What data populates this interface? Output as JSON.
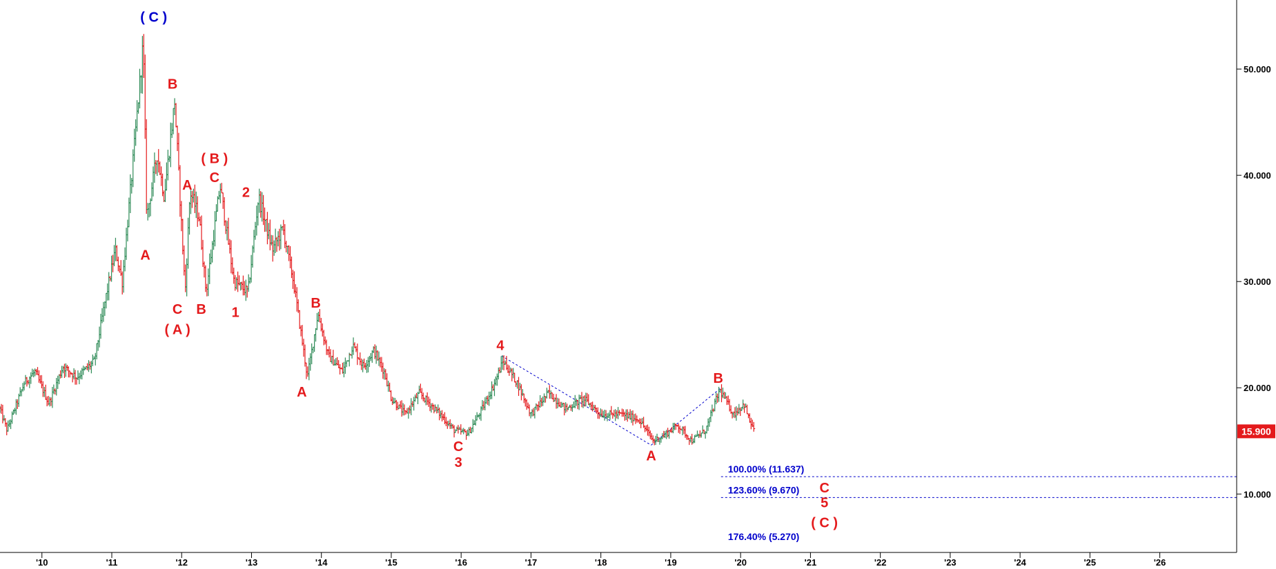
{
  "chart_data": {
    "type": "candlestick",
    "title": "",
    "xlabel": "",
    "ylabel": "",
    "x_range": [
      2009.4,
      2027.1
    ],
    "ylim": [
      4.5,
      56.5
    ],
    "grid": false,
    "up_color": "#2e8b57",
    "down_color": "#e41a1c",
    "x_ticks": [
      {
        "label": "'10",
        "x": 2010.0
      },
      {
        "label": "'11",
        "x": 2011.0
      },
      {
        "label": "'12",
        "x": 2012.0
      },
      {
        "label": "'13",
        "x": 2013.0
      },
      {
        "label": "'14",
        "x": 2014.0
      },
      {
        "label": "'15",
        "x": 2015.0
      },
      {
        "label": "'16",
        "x": 2016.0
      },
      {
        "label": "'17",
        "x": 2017.0
      },
      {
        "label": "'18",
        "x": 2018.0
      },
      {
        "label": "'19",
        "x": 2019.0
      },
      {
        "label": "'20",
        "x": 2020.0
      },
      {
        "label": "'21",
        "x": 2021.0
      },
      {
        "label": "'22",
        "x": 2022.0
      },
      {
        "label": "'23",
        "x": 2023.0
      },
      {
        "label": "'24",
        "x": 2024.0
      },
      {
        "label": "'25",
        "x": 2025.0
      },
      {
        "label": "'26",
        "x": 2026.0
      }
    ],
    "y_ticks": [
      {
        "label": "50.000",
        "y": 50
      },
      {
        "label": "40.000",
        "y": 40
      },
      {
        "label": "30.000",
        "y": 30
      },
      {
        "label": "20.000",
        "y": 20
      },
      {
        "label": "10.000",
        "y": 10
      }
    ],
    "last_price": {
      "label": "15.900",
      "y": 15.9,
      "color": "#e41a1c"
    },
    "price_path": [
      [
        2009.4,
        18.0
      ],
      [
        2009.5,
        16.0
      ],
      [
        2009.75,
        20.5
      ],
      [
        2009.9,
        21.5
      ],
      [
        2010.1,
        18.5
      ],
      [
        2010.3,
        22.0
      ],
      [
        2010.5,
        21.0
      ],
      [
        2010.75,
        22.5
      ],
      [
        2010.9,
        28.0
      ],
      [
        2011.05,
        33.0
      ],
      [
        2011.15,
        30.0
      ],
      [
        2011.3,
        41.0
      ],
      [
        2011.45,
        52.5
      ],
      [
        2011.5,
        36.0
      ],
      [
        2011.65,
        42.0
      ],
      [
        2011.75,
        38.0
      ],
      [
        2011.9,
        47.0
      ],
      [
        2012.05,
        29.0
      ],
      [
        2012.12,
        38.5
      ],
      [
        2012.25,
        36.0
      ],
      [
        2012.35,
        29.0
      ],
      [
        2012.55,
        39.0
      ],
      [
        2012.75,
        30.0
      ],
      [
        2012.95,
        29.0
      ],
      [
        2013.1,
        38.0
      ],
      [
        2013.3,
        33.0
      ],
      [
        2013.45,
        35.0
      ],
      [
        2013.6,
        30.0
      ],
      [
        2013.8,
        21.0
      ],
      [
        2013.95,
        27.0
      ],
      [
        2014.1,
        23.0
      ],
      [
        2014.3,
        21.5
      ],
      [
        2014.45,
        24.0
      ],
      [
        2014.6,
        22.0
      ],
      [
        2014.75,
        23.5
      ],
      [
        2014.9,
        21.5
      ],
      [
        2015.0,
        19.0
      ],
      [
        2015.2,
        17.5
      ],
      [
        2015.4,
        19.5
      ],
      [
        2015.7,
        17.5
      ],
      [
        2015.9,
        16.0
      ],
      [
        2016.1,
        15.7
      ],
      [
        2016.3,
        18.0
      ],
      [
        2016.45,
        20.0
      ],
      [
        2016.6,
        22.5
      ],
      [
        2016.8,
        20.5
      ],
      [
        2017.0,
        17.5
      ],
      [
        2017.25,
        19.5
      ],
      [
        2017.5,
        18.0
      ],
      [
        2017.75,
        19.0
      ],
      [
        2018.0,
        17.5
      ],
      [
        2018.3,
        17.5
      ],
      [
        2018.55,
        17.0
      ],
      [
        2018.75,
        15.0
      ],
      [
        2018.9,
        15.5
      ],
      [
        2019.1,
        16.5
      ],
      [
        2019.3,
        15.0
      ],
      [
        2019.5,
        16.0
      ],
      [
        2019.7,
        19.8
      ],
      [
        2019.9,
        17.5
      ],
      [
        2020.05,
        18.5
      ],
      [
        2020.12,
        17.0
      ],
      [
        2020.2,
        15.9
      ]
    ],
    "channel_lines": [
      {
        "points": [
          [
            2016.58,
            23.0
          ],
          [
            2018.72,
            14.6
          ]
        ],
        "color": "#0000cc"
      },
      {
        "points": [
          [
            2018.72,
            14.6
          ],
          [
            2019.72,
            20.0
          ]
        ],
        "color": "#0000cc"
      }
    ],
    "fib_levels": [
      {
        "label": "100.00% (11.637)",
        "y": 11.637,
        "line": true
      },
      {
        "label": "123.60% (9.670)",
        "y": 9.67,
        "line": true
      },
      {
        "label": "176.40% (5.270)",
        "y": 5.27,
        "line": false
      }
    ],
    "fib_start_x": 2019.72,
    "fib_color": "#0000cc",
    "annotations": [
      {
        "text": "( C )",
        "x": 2011.6,
        "y": 54.8,
        "color": "#0000cc"
      },
      {
        "text": "B",
        "x": 2011.87,
        "y": 48.5,
        "color": "#e41a1c"
      },
      {
        "text": "A",
        "x": 2011.48,
        "y": 32.4,
        "color": "#e41a1c"
      },
      {
        "text": "A",
        "x": 2012.08,
        "y": 39.0,
        "color": "#e41a1c"
      },
      {
        "text": "( B )",
        "x": 2012.47,
        "y": 41.5,
        "color": "#e41a1c"
      },
      {
        "text": "C",
        "x": 2012.47,
        "y": 39.7,
        "color": "#e41a1c"
      },
      {
        "text": "2",
        "x": 2012.92,
        "y": 38.3,
        "color": "#e41a1c"
      },
      {
        "text": "C",
        "x": 2011.94,
        "y": 27.3,
        "color": "#e41a1c"
      },
      {
        "text": "( A )",
        "x": 2011.94,
        "y": 25.4,
        "color": "#e41a1c"
      },
      {
        "text": "B",
        "x": 2012.28,
        "y": 27.3,
        "color": "#e41a1c"
      },
      {
        "text": "1",
        "x": 2012.77,
        "y": 27.0,
        "color": "#e41a1c"
      },
      {
        "text": "B",
        "x": 2013.92,
        "y": 27.9,
        "color": "#e41a1c"
      },
      {
        "text": "A",
        "x": 2013.72,
        "y": 19.5,
        "color": "#e41a1c"
      },
      {
        "text": "4",
        "x": 2016.56,
        "y": 23.9,
        "color": "#e41a1c"
      },
      {
        "text": "C",
        "x": 2015.96,
        "y": 14.4,
        "color": "#e41a1c"
      },
      {
        "text": "3",
        "x": 2015.96,
        "y": 12.9,
        "color": "#e41a1c"
      },
      {
        "text": "A",
        "x": 2018.72,
        "y": 13.5,
        "color": "#e41a1c"
      },
      {
        "text": "B",
        "x": 2019.68,
        "y": 20.8,
        "color": "#e41a1c"
      },
      {
        "text": "C",
        "x": 2021.2,
        "y": 10.5,
        "color": "#e41a1c"
      },
      {
        "text": "5",
        "x": 2021.2,
        "y": 9.1,
        "color": "#e41a1c"
      },
      {
        "text": "( C )",
        "x": 2021.2,
        "y": 7.2,
        "color": "#e41a1c"
      }
    ]
  }
}
